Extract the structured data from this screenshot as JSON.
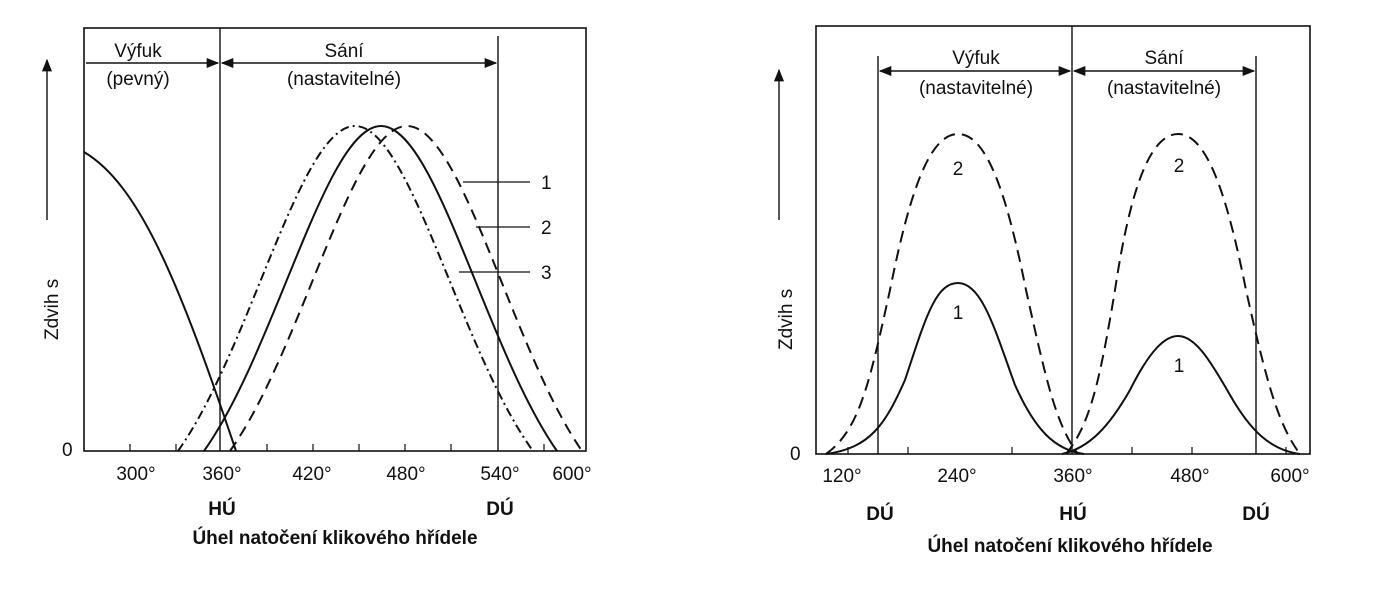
{
  "left": {
    "ylabel": "Zdvih s",
    "xlabel": "Úhel natočení klikového hřídele",
    "zero": "0",
    "ticks": [
      "300°",
      "360°",
      "420°",
      "480°",
      "540°",
      "600°"
    ],
    "tick_values": [
      300,
      360,
      420,
      480,
      540,
      600
    ],
    "marker_hu": "HÚ",
    "marker_du": "DÚ",
    "region_exhaust": "Výfuk",
    "region_exhaust_sub": "(pevný)",
    "region_intake": "Sání",
    "region_intake_sub": "(nastavitelné)",
    "curve_labels": [
      "1",
      "2",
      "3"
    ]
  },
  "right": {
    "ylabel": "Zdvih s",
    "xlabel": "Úhel natočení klikového hřídele",
    "zero": "0",
    "ticks": [
      "120°",
      "240°",
      "360°",
      "480°",
      "600°"
    ],
    "tick_values": [
      120,
      240,
      360,
      480,
      600
    ],
    "marker_du1": "DÚ",
    "marker_hu": "HÚ",
    "marker_du2": "DÚ",
    "region_exhaust": "Výfuk",
    "region_exhaust_sub": "(nastavitelné)",
    "region_intake": "Sání",
    "region_intake_sub": "(nastavitelné)",
    "label_1a": "1",
    "label_2a": "2",
    "label_1b": "1",
    "label_2b": "2"
  },
  "chart_data": [
    {
      "type": "line",
      "title": "",
      "xlabel": "Úhel natočení klikového hřídele",
      "ylabel": "Zdvih s",
      "xlim": [
        265,
        610
      ],
      "ylim": [
        0,
        1.05
      ],
      "grid": false,
      "vertical_markers": [
        {
          "x": 360,
          "label": "HÚ"
        },
        {
          "x": 540,
          "label": "DÚ"
        }
      ],
      "regions": [
        {
          "label": "Výfuk (pevný)",
          "from": 265,
          "to": 360
        },
        {
          "label": "Sání (nastavitelné)",
          "from": 360,
          "to": 540
        }
      ],
      "series": [
        {
          "name": "",
          "style": "solid",
          "x": [
            265,
            280,
            300,
            320,
            340,
            360,
            372
          ],
          "y": [
            0.92,
            0.86,
            0.73,
            0.55,
            0.33,
            0.11,
            0.0
          ]
        },
        {
          "name": "1",
          "style": "dash-dot",
          "x": [
            337,
            360,
            390,
            420,
            452,
            480,
            510,
            540,
            567
          ],
          "y": [
            0.0,
            0.16,
            0.63,
            0.93,
            1.0,
            0.93,
            0.63,
            0.16,
            0.0
          ]
        },
        {
          "name": "2",
          "style": "solid",
          "x": [
            347,
            370,
            400,
            430,
            462,
            490,
            520,
            550,
            577
          ],
          "y": [
            0.0,
            0.16,
            0.63,
            0.93,
            1.0,
            0.93,
            0.63,
            0.16,
            0.0
          ]
        },
        {
          "name": "3",
          "style": "dashed",
          "x": [
            357,
            380,
            410,
            440,
            472,
            500,
            530,
            560,
            587
          ],
          "y": [
            0.0,
            0.16,
            0.63,
            0.93,
            1.0,
            0.93,
            0.63,
            0.16,
            0.0
          ]
        }
      ]
    },
    {
      "type": "line",
      "title": "",
      "xlabel": "Úhel natočení klikového hřídele",
      "ylabel": "Zdvih s",
      "xlim": [
        110,
        620
      ],
      "ylim": [
        0,
        1.05
      ],
      "grid": false,
      "vertical_markers": [
        {
          "x": 180,
          "label": "DÚ"
        },
        {
          "x": 360,
          "label": "HÚ"
        },
        {
          "x": 540,
          "label": "DÚ"
        }
      ],
      "regions": [
        {
          "label": "Výfuk (nastavitelné)",
          "from": 180,
          "to": 360
        },
        {
          "label": "Sání (nastavitelné)",
          "from": 360,
          "to": 540
        }
      ],
      "series": [
        {
          "name": "1",
          "style": "solid",
          "x": [
            112,
            150,
            180,
            210,
            255,
            300,
            330,
            365
          ],
          "y": [
            0.0,
            0.03,
            0.14,
            0.44,
            0.57,
            0.44,
            0.14,
            0.0
          ]
        },
        {
          "name": "1",
          "style": "solid",
          "x": [
            342,
            380,
            410,
            450,
            470,
            510,
            540,
            580
          ],
          "y": [
            0.0,
            0.06,
            0.2,
            0.37,
            0.39,
            0.29,
            0.15,
            0.0
          ]
        },
        {
          "name": "2",
          "style": "dashed",
          "x": [
            112,
            150,
            180,
            210,
            255,
            300,
            330,
            365
          ],
          "y": [
            0.0,
            0.28,
            0.65,
            0.94,
            1.0,
            0.94,
            0.65,
            0.0
          ]
        },
        {
          "name": "2",
          "style": "dashed",
          "x": [
            355,
            390,
            420,
            455,
            470,
            500,
            540,
            585
          ],
          "y": [
            0.0,
            0.45,
            0.85,
            0.99,
            1.0,
            0.94,
            0.65,
            0.0
          ]
        }
      ]
    }
  ]
}
